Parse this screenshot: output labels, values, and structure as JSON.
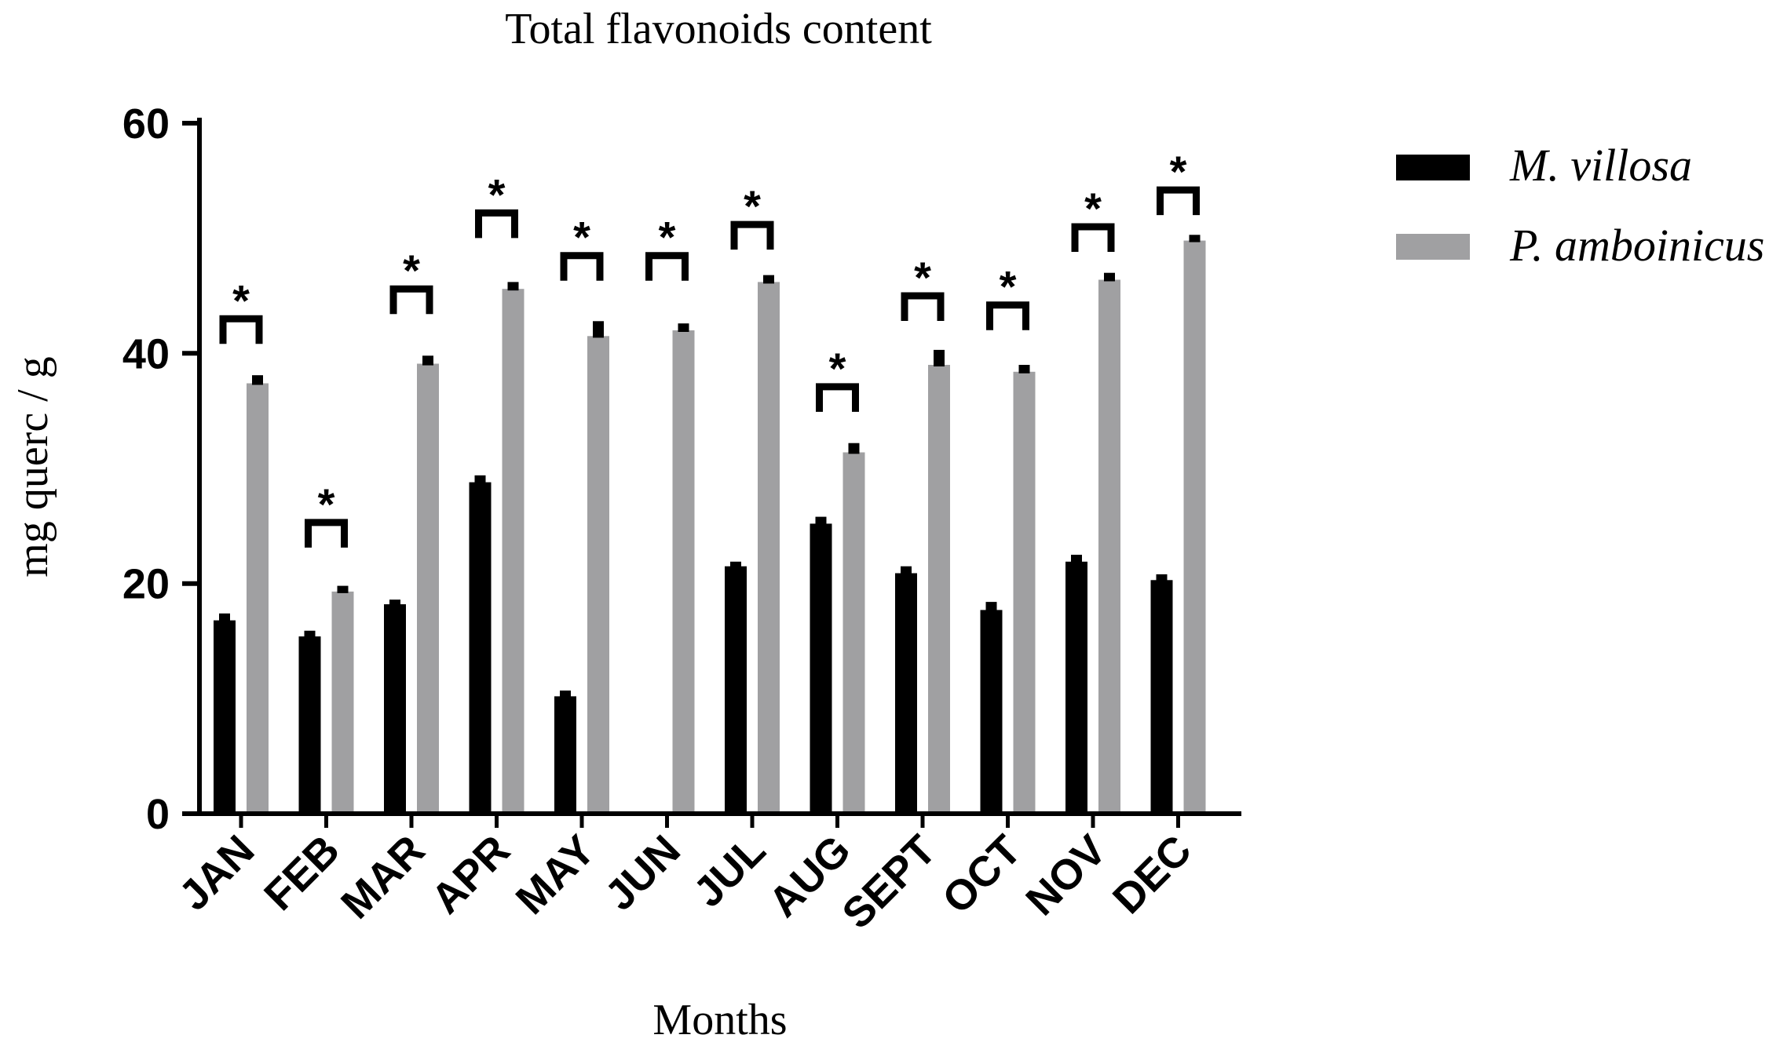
{
  "chart_data": {
    "type": "bar",
    "title": "Total flavonoids content",
    "xlabel": "Months",
    "ylabel": "mg querc / g",
    "ylim": [
      0,
      60
    ],
    "yticks": [
      "0",
      "20",
      "40",
      "60"
    ],
    "ytick_values": [
      0,
      20,
      40,
      60
    ],
    "categories": [
      "JAN",
      "FEB",
      "MAR",
      "APR",
      "MAY",
      "JUN",
      "JUL",
      "AUG",
      "SEPT",
      "OCT",
      "NOV",
      "DEC"
    ],
    "series": [
      {
        "name": "M. villosa",
        "color": "#000000",
        "values": [
          16.8,
          15.4,
          18.2,
          28.8,
          10.2,
          0,
          21.5,
          25.2,
          20.9,
          17.7,
          21.9,
          20.3
        ],
        "errors": [
          0.6,
          0.5,
          0.4,
          0.6,
          0.5,
          0,
          0.4,
          0.6,
          0.6,
          0.7,
          0.6,
          0.5
        ]
      },
      {
        "name": "P. amboinicus",
        "color": "#a0a0a2",
        "values": [
          37.4,
          19.3,
          39.1,
          45.6,
          41.5,
          42.0,
          46.2,
          31.4,
          39.0,
          38.4,
          46.4,
          49.8
        ],
        "errors": [
          0.7,
          0.5,
          0.7,
          0.6,
          1.3,
          0.6,
          0.6,
          0.8,
          1.3,
          0.6,
          0.6,
          0.5
        ]
      }
    ],
    "significance": {
      "symbol": "*",
      "bracket_values": [
        43.0,
        25.3,
        45.6,
        52.2,
        48.5,
        48.5,
        51.2,
        37.1,
        45.0,
        44.2,
        51.0,
        54.2
      ]
    },
    "legend_placement": "top-right"
  }
}
